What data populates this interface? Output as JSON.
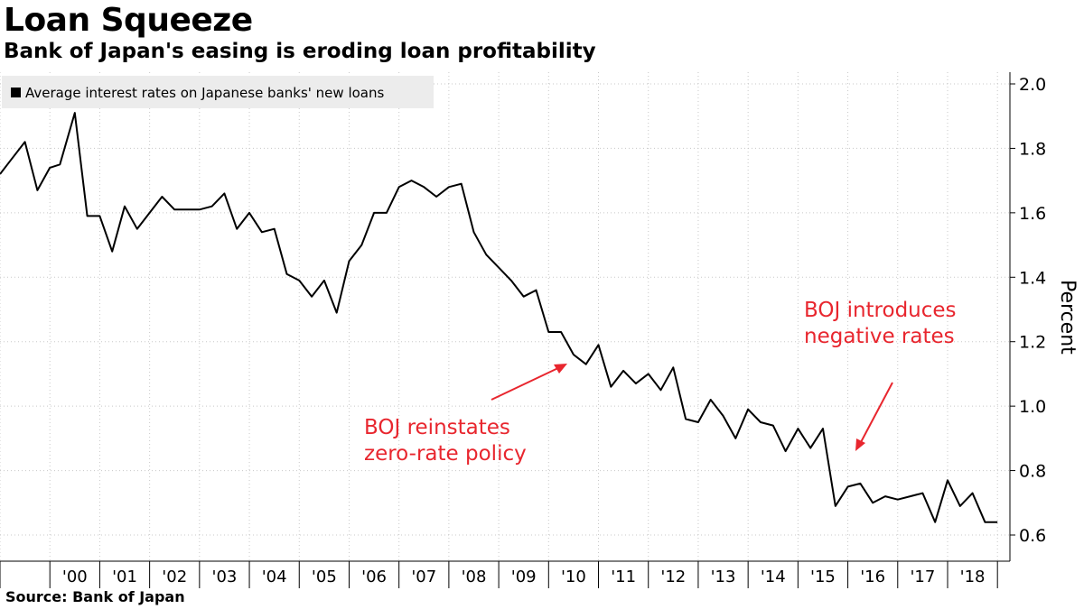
{
  "title": "Loan Squeeze",
  "subtitle": "Bank of Japan's easing is eroding loan profitability",
  "source": "Source:  Bank of Japan",
  "chart_data": {
    "type": "line",
    "ylabel": "Percent",
    "ylim": [
      0.55,
      2.05
    ],
    "yticks": [
      0.6,
      0.8,
      1.0,
      1.2,
      1.4,
      1.6,
      1.8,
      2.0
    ],
    "ytick_labels": [
      "0.6",
      "0.8",
      "1.0",
      "1.2",
      "1.4",
      "1.6",
      "1.8",
      "2.0"
    ],
    "xlim": [
      1999.0,
      2019.25
    ],
    "xtick_labels": [
      "'00",
      "'01",
      "'02",
      "'03",
      "'04",
      "'05",
      "'06",
      "'07",
      "'08",
      "'09",
      "'10",
      "'11",
      "'12",
      "'13",
      "'14",
      "'15",
      "'16",
      "'17",
      "'18"
    ],
    "xtick_years": [
      2000,
      2001,
      2002,
      2003,
      2004,
      2005,
      2006,
      2007,
      2008,
      2009,
      2010,
      2011,
      2012,
      2013,
      2014,
      2015,
      2016,
      2017,
      2018
    ],
    "grid": true,
    "legend_position": "top-left",
    "series": [
      {
        "name": "Average interest rates on Japanese banks' new loans",
        "color": "#000000",
        "x": [
          1999.0,
          1999.2,
          1999.5,
          1999.75,
          2000.0,
          2000.2,
          2000.5,
          2000.75,
          2001.0,
          2001.25,
          2001.5,
          2001.75,
          2002.0,
          2002.25,
          2002.5,
          2002.75,
          2003.0,
          2003.25,
          2003.5,
          2003.75,
          2004.0,
          2004.25,
          2004.5,
          2004.75,
          2005.0,
          2005.25,
          2005.5,
          2005.75,
          2006.0,
          2006.25,
          2006.5,
          2006.75,
          2007.0,
          2007.25,
          2007.5,
          2007.75,
          2008.0,
          2008.25,
          2008.5,
          2008.75,
          2009.0,
          2009.25,
          2009.5,
          2009.75,
          2010.0,
          2010.25,
          2010.5,
          2010.75,
          2011.0,
          2011.25,
          2011.5,
          2011.75,
          2012.0,
          2012.25,
          2012.5,
          2012.75,
          2013.0,
          2013.25,
          2013.5,
          2013.75,
          2014.0,
          2014.25,
          2014.5,
          2014.75,
          2015.0,
          2015.25,
          2015.5,
          2015.75,
          2016.0,
          2016.25,
          2016.5,
          2016.75,
          2017.0,
          2017.25,
          2017.5,
          2017.75,
          2018.0,
          2018.25,
          2018.5,
          2018.75,
          2019.0
        ],
        "y": [
          1.72,
          1.76,
          1.82,
          1.67,
          1.74,
          1.75,
          1.91,
          1.59,
          1.59,
          1.48,
          1.62,
          1.55,
          1.6,
          1.65,
          1.61,
          1.61,
          1.61,
          1.62,
          1.66,
          1.55,
          1.6,
          1.54,
          1.55,
          1.41,
          1.39,
          1.34,
          1.39,
          1.29,
          1.45,
          1.5,
          1.6,
          1.6,
          1.68,
          1.7,
          1.68,
          1.65,
          1.68,
          1.69,
          1.54,
          1.47,
          1.43,
          1.39,
          1.34,
          1.36,
          1.23,
          1.23,
          1.16,
          1.13,
          1.19,
          1.06,
          1.11,
          1.07,
          1.1,
          1.05,
          1.12,
          0.96,
          0.95,
          1.02,
          0.97,
          0.9,
          0.99,
          0.95,
          0.94,
          0.86,
          0.93,
          0.87,
          0.93,
          0.69,
          0.75,
          0.76,
          0.7,
          0.72,
          0.71,
          0.72,
          0.73,
          0.64,
          0.77,
          0.69,
          0.73,
          0.64,
          0.64
        ]
      }
    ],
    "annotations": [
      {
        "text": [
          "BOJ reinstates",
          "zero-rate policy"
        ],
        "color": "#e8262e"
      },
      {
        "text": [
          "BOJ introduces",
          "negative rates"
        ],
        "color": "#e8262e"
      }
    ]
  }
}
